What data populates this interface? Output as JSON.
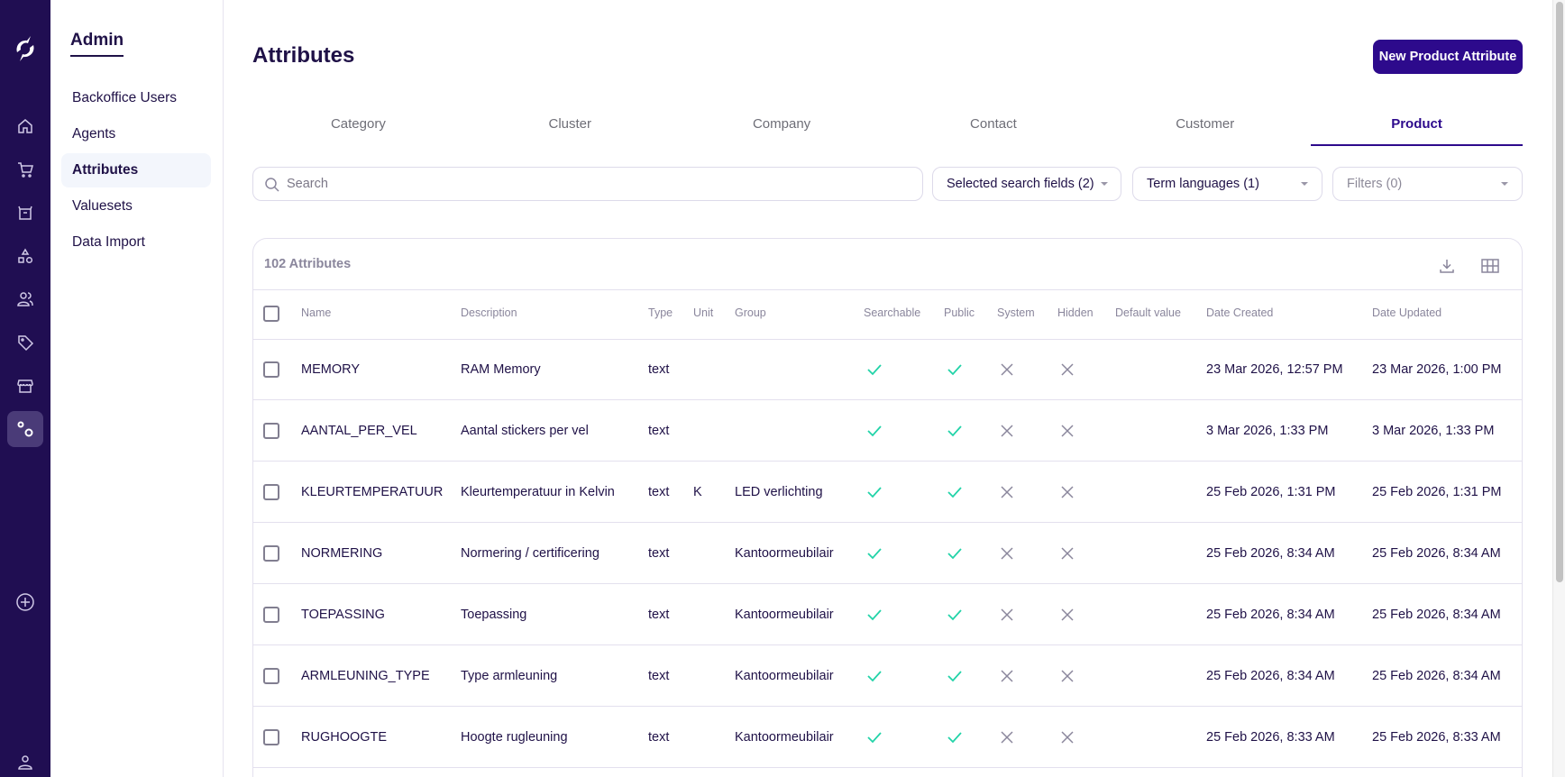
{
  "rail": {
    "items": [
      {
        "icon": "home-icon"
      },
      {
        "icon": "cart-icon"
      },
      {
        "icon": "box-icon"
      },
      {
        "icon": "shapes-icon"
      },
      {
        "icon": "users-icon"
      },
      {
        "icon": "tag-icon"
      },
      {
        "icon": "store-icon"
      },
      {
        "icon": "settings-gears-icon",
        "active": true
      }
    ],
    "add_icon": "plus-circle-icon",
    "profile_icon": "user-icon"
  },
  "submenu": {
    "title": "Admin",
    "items": [
      {
        "label": "Backoffice Users"
      },
      {
        "label": "Agents"
      },
      {
        "label": "Attributes",
        "active": true
      },
      {
        "label": "Valuesets"
      },
      {
        "label": "Data Import"
      }
    ]
  },
  "page": {
    "title": "Attributes",
    "new_button": "New Product Attribute"
  },
  "tabs": [
    {
      "label": "Category"
    },
    {
      "label": "Cluster"
    },
    {
      "label": "Company"
    },
    {
      "label": "Contact"
    },
    {
      "label": "Customer"
    },
    {
      "label": "Product",
      "active": true
    }
  ],
  "filters": {
    "search_placeholder": "Search",
    "search_value": "",
    "search_fields": "Selected search fields (2)",
    "term_languages": "Term languages (1)",
    "filters": "Filters (0)"
  },
  "table": {
    "count_label": "102 Attributes",
    "columns": [
      "Name",
      "Description",
      "Type",
      "Unit",
      "Group",
      "Searchable",
      "Public",
      "System",
      "Hidden",
      "Default value",
      "Date Created",
      "Date Updated"
    ],
    "rows": [
      {
        "name": "MEMORY",
        "description": "RAM Memory",
        "type": "text",
        "unit": "",
        "group": "",
        "searchable": true,
        "public": true,
        "system": false,
        "hidden": false,
        "default_value": "",
        "created": "23 Mar 2026, 12:57 PM",
        "updated": "23 Mar 2026, 1:00 PM"
      },
      {
        "name": "AANTAL_PER_VEL",
        "description": "Aantal stickers per vel",
        "type": "text",
        "unit": "",
        "group": "",
        "searchable": true,
        "public": true,
        "system": false,
        "hidden": false,
        "default_value": "",
        "created": "3 Mar 2026, 1:33 PM",
        "updated": "3 Mar 2026, 1:33 PM"
      },
      {
        "name": "KLEURTEMPERATUUR",
        "description": "Kleurtemperatuur in Kelvin",
        "type": "text",
        "unit": "K",
        "group": "LED verlichting",
        "searchable": true,
        "public": true,
        "system": false,
        "hidden": false,
        "default_value": "",
        "created": "25 Feb 2026, 1:31 PM",
        "updated": "25 Feb 2026, 1:31 PM"
      },
      {
        "name": "NORMERING",
        "description": "Normering / certificering",
        "type": "text",
        "unit": "",
        "group": "Kantoormeubilair",
        "searchable": true,
        "public": true,
        "system": false,
        "hidden": false,
        "default_value": "",
        "created": "25 Feb 2026, 8:34 AM",
        "updated": "25 Feb 2026, 8:34 AM"
      },
      {
        "name": "TOEPASSING",
        "description": "Toepassing",
        "type": "text",
        "unit": "",
        "group": "Kantoormeubilair",
        "searchable": true,
        "public": true,
        "system": false,
        "hidden": false,
        "default_value": "",
        "created": "25 Feb 2026, 8:34 AM",
        "updated": "25 Feb 2026, 8:34 AM"
      },
      {
        "name": "ARMLEUNING_TYPE",
        "description": "Type armleuning",
        "type": "text",
        "unit": "",
        "group": "Kantoormeubilair",
        "searchable": true,
        "public": true,
        "system": false,
        "hidden": false,
        "default_value": "",
        "created": "25 Feb 2026, 8:34 AM",
        "updated": "25 Feb 2026, 8:34 AM"
      },
      {
        "name": "RUGHOOGTE",
        "description": "Hoogte rugleuning",
        "type": "text",
        "unit": "",
        "group": "Kantoormeubilair",
        "searchable": true,
        "public": true,
        "system": false,
        "hidden": false,
        "default_value": "",
        "created": "25 Feb 2026, 8:33 AM",
        "updated": "25 Feb 2026, 8:33 AM"
      }
    ]
  },
  "colors": {
    "rail_bg": "#200e52",
    "accent": "#2d0a8c",
    "check": "#22d3a8",
    "cross": "#8a869c",
    "text": "#1f1147"
  }
}
